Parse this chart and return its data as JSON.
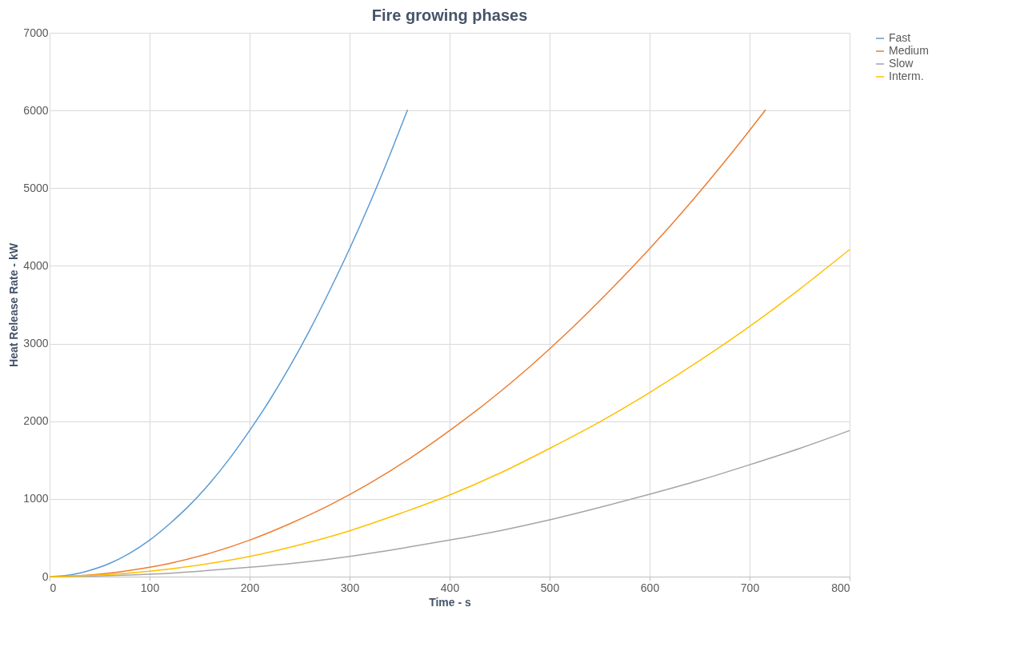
{
  "chart_data": {
    "type": "line",
    "title": "Fire growing phases",
    "xlabel": "Time - s",
    "ylabel": "Heat Release Rate - kW",
    "xlim": [
      0,
      800
    ],
    "xticks": [
      0,
      100,
      200,
      300,
      400,
      500,
      600,
      700,
      800
    ],
    "ylim": [
      0,
      7000
    ],
    "yticks": [
      0,
      1000,
      2000,
      3000,
      4000,
      5000,
      6000,
      7000
    ],
    "grid": true,
    "legend": "right",
    "marker": "none",
    "line_style": "solid",
    "series": [
      {
        "name": "Fast",
        "color": "#5b9bd5",
        "x": [
          0,
          20,
          40,
          60,
          80,
          100,
          120,
          140,
          160,
          180,
          200,
          220,
          240,
          260,
          280,
          300,
          320,
          340,
          358
        ],
        "values": [
          0,
          20,
          80,
          170,
          300,
          470,
          680,
          920,
          1200,
          1520,
          1880,
          2270,
          2700,
          3170,
          3680,
          4220,
          4800,
          5420,
          6010
        ]
      },
      {
        "name": "Medium",
        "color": "#ed7d31",
        "x": [
          0,
          40,
          80,
          120,
          160,
          200,
          240,
          280,
          320,
          360,
          400,
          440,
          480,
          520,
          560,
          600,
          640,
          680,
          716
        ],
        "values": [
          0,
          20,
          80,
          170,
          300,
          470,
          680,
          920,
          1200,
          1520,
          1880,
          2270,
          2700,
          3170,
          3680,
          4220,
          4800,
          5420,
          6010
        ]
      },
      {
        "name": "Slow",
        "color": "#a5a5a5",
        "x": [
          0,
          50,
          100,
          150,
          200,
          250,
          300,
          350,
          400,
          450,
          500,
          550,
          600,
          650,
          700,
          750,
          800
        ],
        "values": [
          0,
          10,
          30,
          70,
          120,
          180,
          260,
          360,
          470,
          590,
          730,
          890,
          1060,
          1240,
          1440,
          1650,
          1880
        ]
      },
      {
        "name": "Interm.",
        "color": "#ffc000",
        "x": [
          0,
          50,
          100,
          150,
          200,
          250,
          300,
          350,
          400,
          450,
          500,
          550,
          600,
          650,
          700,
          750,
          800
        ],
        "values": [
          0,
          20,
          70,
          150,
          260,
          410,
          590,
          810,
          1050,
          1330,
          1650,
          1990,
          2370,
          2780,
          3220,
          3700,
          4210
        ]
      }
    ]
  }
}
